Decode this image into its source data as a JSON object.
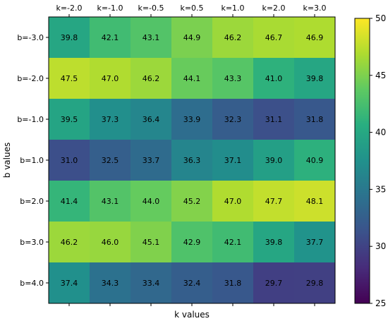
{
  "chart_data": {
    "type": "heatmap",
    "title": "",
    "xlabel": "k values",
    "ylabel": "b values",
    "x_categories": [
      "k=-2.0",
      "k=-1.0",
      "k=-0.5",
      "k=0.5",
      "k=1.0",
      "k=2.0",
      "k=3.0"
    ],
    "y_categories": [
      "b=-3.0",
      "b=-2.0",
      "b=-1.0",
      "b=1.0",
      "b=2.0",
      "b=3.0",
      "b=4.0"
    ],
    "values": [
      [
        39.8,
        42.1,
        43.1,
        44.9,
        46.2,
        46.7,
        46.9
      ],
      [
        47.5,
        47.0,
        46.2,
        44.1,
        43.3,
        41.0,
        39.8
      ],
      [
        39.5,
        37.3,
        36.4,
        33.9,
        32.3,
        31.1,
        31.8
      ],
      [
        31.0,
        32.5,
        33.7,
        36.3,
        37.1,
        39.0,
        40.9
      ],
      [
        41.4,
        43.1,
        44.0,
        45.2,
        47.0,
        47.7,
        48.1
      ],
      [
        46.2,
        46.0,
        45.1,
        42.9,
        42.1,
        39.8,
        37.7
      ],
      [
        37.4,
        34.3,
        33.4,
        32.4,
        31.8,
        29.7,
        29.8
      ]
    ],
    "value_labels": [
      [
        "39.8",
        "42.1",
        "43.1",
        "44.9",
        "46.2",
        "46.7",
        "46.9"
      ],
      [
        "47.5",
        "47.0",
        "46.2",
        "44.1",
        "43.3",
        "41.0",
        "39.8"
      ],
      [
        "39.5",
        "37.3",
        "36.4",
        "33.9",
        "32.3",
        "31.1",
        "31.8"
      ],
      [
        "31.0",
        "32.5",
        "33.7",
        "36.3",
        "37.1",
        "39.0",
        "40.9"
      ],
      [
        "41.4",
        "43.1",
        "44.0",
        "45.2",
        "47.0",
        "47.7",
        "48.1"
      ],
      [
        "46.2",
        "46.0",
        "45.1",
        "42.9",
        "42.1",
        "39.8",
        "37.7"
      ],
      [
        "37.4",
        "34.3",
        "33.4",
        "32.4",
        "31.8",
        "29.7",
        "29.8"
      ]
    ],
    "colormap": "viridis",
    "color_range": [
      25,
      50
    ],
    "colorbar_ticks": [
      "25",
      "30",
      "35",
      "40",
      "45",
      "50"
    ],
    "x_tick_position": "top",
    "grid": false,
    "legend": "colorbar-right"
  }
}
